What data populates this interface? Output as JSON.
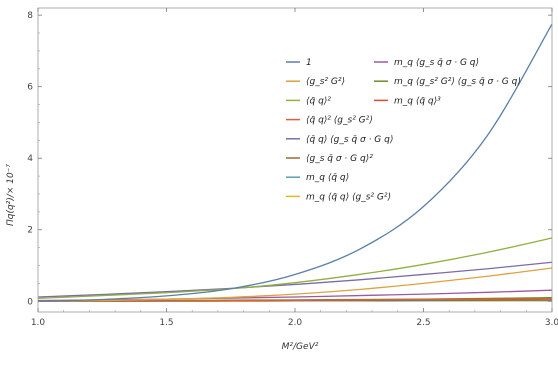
{
  "chart_data": {
    "type": "line",
    "xlabel": "M²/GeV²",
    "ylabel": "Πq(q²)/× 10⁻⁷",
    "xlim": [
      1.0,
      3.0
    ],
    "ylim": [
      -0.3,
      8.2
    ],
    "xticks": [
      "1.0",
      "1.5",
      "2.0",
      "2.5",
      "3.0"
    ],
    "yticks": [
      "0",
      "2",
      "4",
      "6",
      "8"
    ],
    "grid": false,
    "legend_placement": "top-center",
    "x": [
      1.0,
      1.25,
      1.5,
      1.75,
      2.0,
      2.25,
      2.5,
      2.75,
      3.0
    ],
    "series": [
      {
        "name": "1",
        "color": "#5b7fa8",
        "values": [
          0.0,
          0.05,
          0.15,
          0.35,
          0.75,
          1.45,
          2.65,
          4.65,
          7.75
        ]
      },
      {
        "name": "⟨g_s² G²⟩",
        "color": "#e0a040",
        "values": [
          0.0,
          0.02,
          0.06,
          0.11,
          0.2,
          0.33,
          0.5,
          0.7,
          0.93
        ]
      },
      {
        "name": "⟨q̄ q⟩²",
        "color": "#8fb040",
        "values": [
          0.08,
          0.16,
          0.24,
          0.35,
          0.52,
          0.75,
          1.03,
          1.37,
          1.77
        ]
      },
      {
        "name": "⟨q̄ q⟩² ⟨g_s² G²⟩",
        "color": "#d9603a",
        "values": [
          0.0,
          0.01,
          0.01,
          0.02,
          0.03,
          0.04,
          0.05,
          0.06,
          0.07
        ]
      },
      {
        "name": "⟨q̄ q⟩ ⟨g_s q̄ σ · G q⟩",
        "color": "#7d6aa8",
        "values": [
          0.12,
          0.19,
          0.27,
          0.36,
          0.47,
          0.6,
          0.75,
          0.91,
          1.09
        ]
      },
      {
        "name": "⟨g_s q̄ σ · G q⟩²",
        "color": "#a0682e",
        "values": [
          0.0,
          0.0,
          0.01,
          0.01,
          0.02,
          0.02,
          0.03,
          0.03,
          0.04
        ]
      },
      {
        "name": "m_q ⟨q̄ q⟩",
        "color": "#5aa0b8",
        "values": [
          0.0,
          0.0,
          0.0,
          0.01,
          0.01,
          0.01,
          0.01,
          0.02,
          0.02
        ]
      },
      {
        "name": "m_q ⟨q̄ q⟩ ⟨g_s² G²⟩",
        "color": "#e6b820",
        "values": [
          0.0,
          0.0,
          0.0,
          0.0,
          0.01,
          0.01,
          0.01,
          0.01,
          0.01
        ]
      },
      {
        "name": "m_q ⟨g_s q̄ σ · G q⟩",
        "color": "#9a5aa0",
        "values": [
          0.02,
          0.04,
          0.06,
          0.09,
          0.12,
          0.16,
          0.2,
          0.25,
          0.31
        ]
      },
      {
        "name": "m_q ⟨g_s² G²⟩ ⟨g_s q̄ σ · G q⟩",
        "color": "#6a8a2a",
        "values": [
          0.0,
          0.01,
          0.02,
          0.03,
          0.04,
          0.05,
          0.06,
          0.08,
          0.1
        ]
      },
      {
        "name": "m_q ⟨q̄ q⟩³",
        "color": "#d84a2a",
        "values": [
          0.0,
          0.0,
          0.01,
          0.01,
          0.01,
          0.02,
          0.02,
          0.02,
          0.03
        ]
      }
    ]
  }
}
